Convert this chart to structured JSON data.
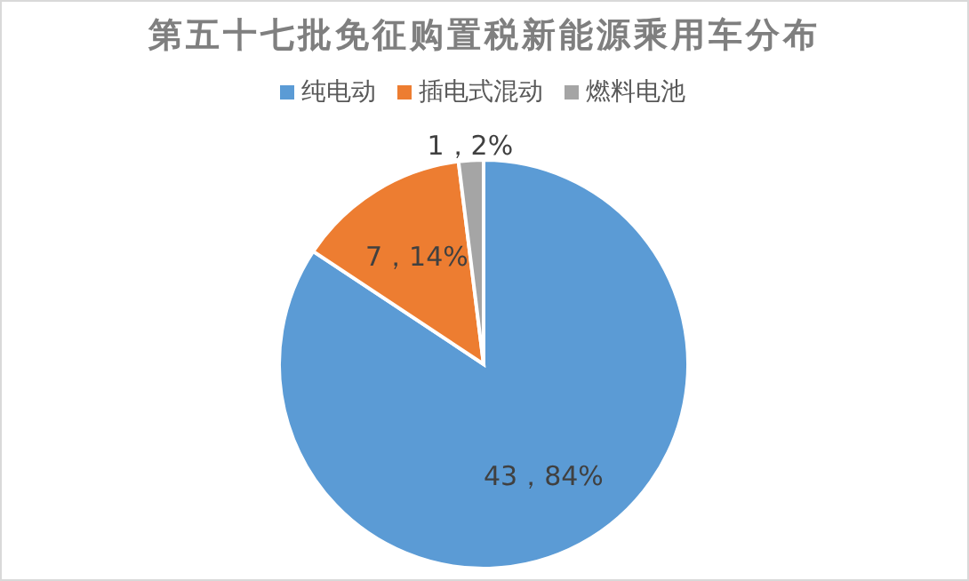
{
  "chart_data": {
    "type": "pie",
    "title": "第五十七批免征购置税新能源乘用车分布",
    "categories": [
      "纯电动",
      "插电式混动",
      "燃料电池"
    ],
    "values": [
      43,
      7,
      1
    ],
    "colors": [
      "#5b9bd5",
      "#ed7d31",
      "#a5a5a5"
    ],
    "value_labels": [
      "43，84%",
      "7，14%",
      "1，2%"
    ],
    "legend": "top"
  }
}
